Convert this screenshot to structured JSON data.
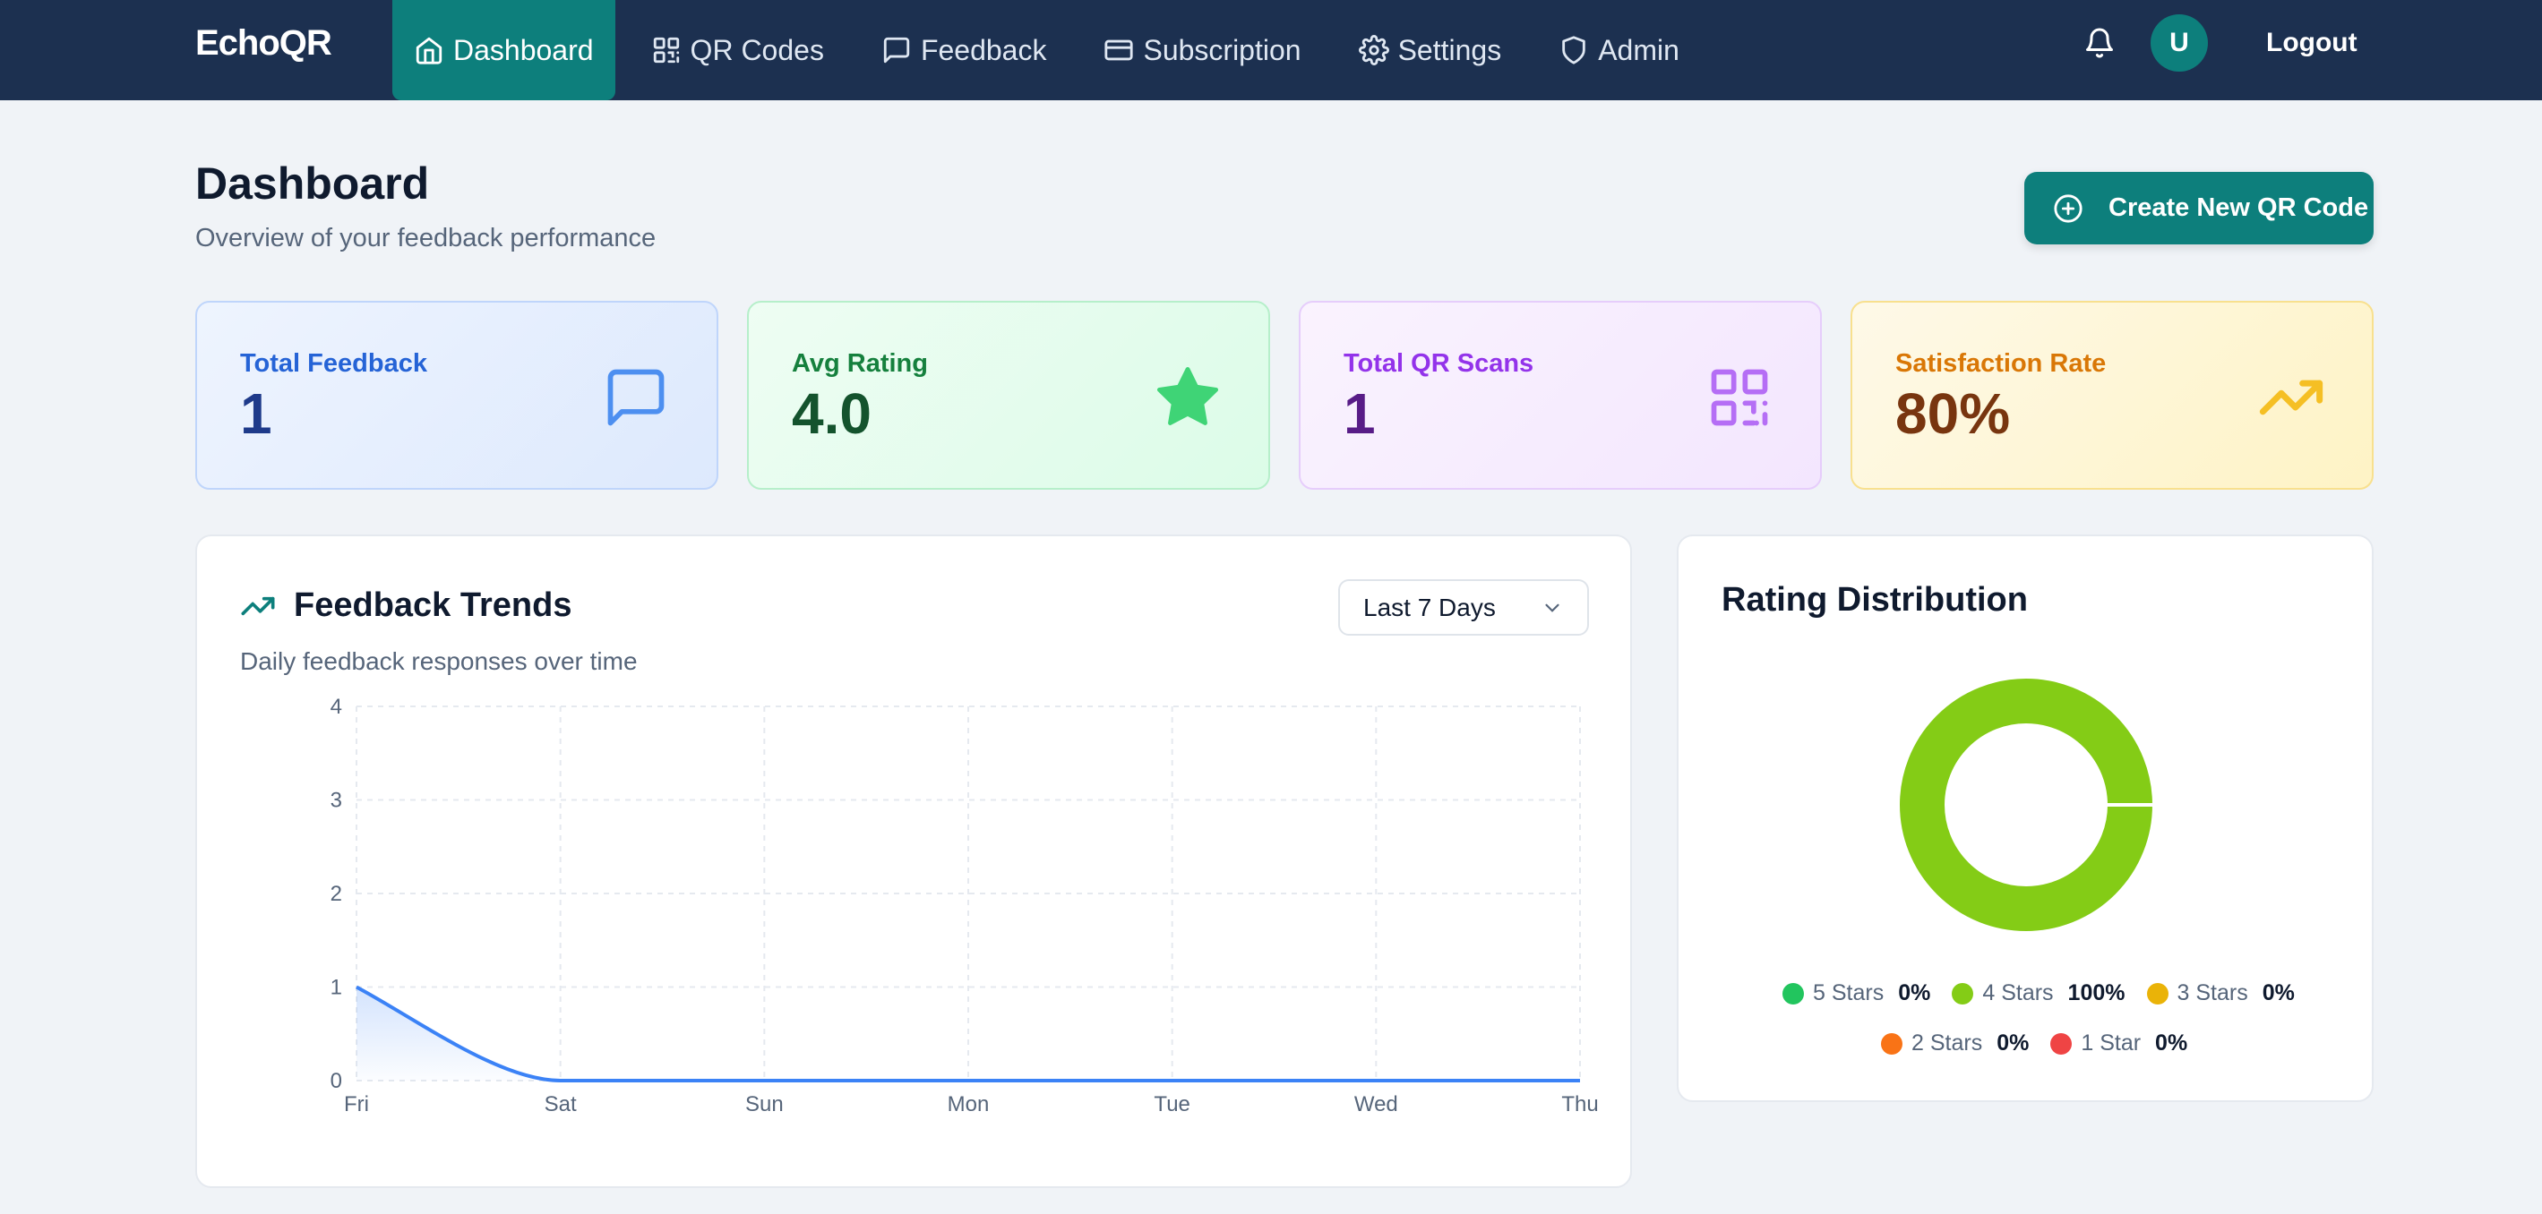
{
  "nav": {
    "brand": "EchoQR",
    "items": [
      {
        "label": "Dashboard",
        "icon": "home-icon",
        "active": true
      },
      {
        "label": "QR Codes",
        "icon": "qr-code-icon",
        "active": false
      },
      {
        "label": "Feedback",
        "icon": "message-square-icon",
        "active": false
      },
      {
        "label": "Subscription",
        "icon": "credit-card-icon",
        "active": false
      },
      {
        "label": "Settings",
        "icon": "gear-icon",
        "active": false
      },
      {
        "label": "Admin",
        "icon": "shield-icon",
        "active": false
      }
    ],
    "avatar_initial": "U",
    "logout_label": "Logout"
  },
  "header": {
    "title": "Dashboard",
    "subtitle": "Overview of your feedback performance",
    "create_button_label": "Create New QR Code"
  },
  "stats": [
    {
      "label": "Total Feedback",
      "value": "1",
      "icon": "message-square-icon"
    },
    {
      "label": "Avg Rating",
      "value": "4.0",
      "icon": "star-icon"
    },
    {
      "label": "Total QR Scans",
      "value": "1",
      "icon": "qr-code-icon"
    },
    {
      "label": "Satisfaction Rate",
      "value": "80%",
      "icon": "trending-up-icon"
    }
  ],
  "trends": {
    "title": "Feedback Trends",
    "subtitle": "Daily feedback responses over time",
    "range_selected": "Last 7 Days",
    "line_color": "#3b82f6"
  },
  "rating": {
    "title": "Rating Distribution",
    "legend": [
      {
        "label": "5 Stars",
        "pct": "0%",
        "color": "#22c55e",
        "value": 0
      },
      {
        "label": "4 Stars",
        "pct": "100%",
        "color": "#84cc16",
        "value": 100
      },
      {
        "label": "3 Stars",
        "pct": "0%",
        "color": "#eab308",
        "value": 0
      },
      {
        "label": "2 Stars",
        "pct": "0%",
        "color": "#f97316",
        "value": 0
      },
      {
        "label": "1 Star",
        "pct": "0%",
        "color": "#ef4444",
        "value": 0
      }
    ]
  },
  "chart_data": {
    "type": "area",
    "categories": [
      "Fri",
      "Sat",
      "Sun",
      "Mon",
      "Tue",
      "Wed",
      "Thu"
    ],
    "series": [
      {
        "values": [
          1,
          0,
          0,
          0,
          0,
          0,
          0
        ]
      }
    ],
    "ylim": [
      0,
      4
    ],
    "yticks": [
      "0",
      "1",
      "2",
      "3",
      "4"
    ],
    "grid": true
  }
}
